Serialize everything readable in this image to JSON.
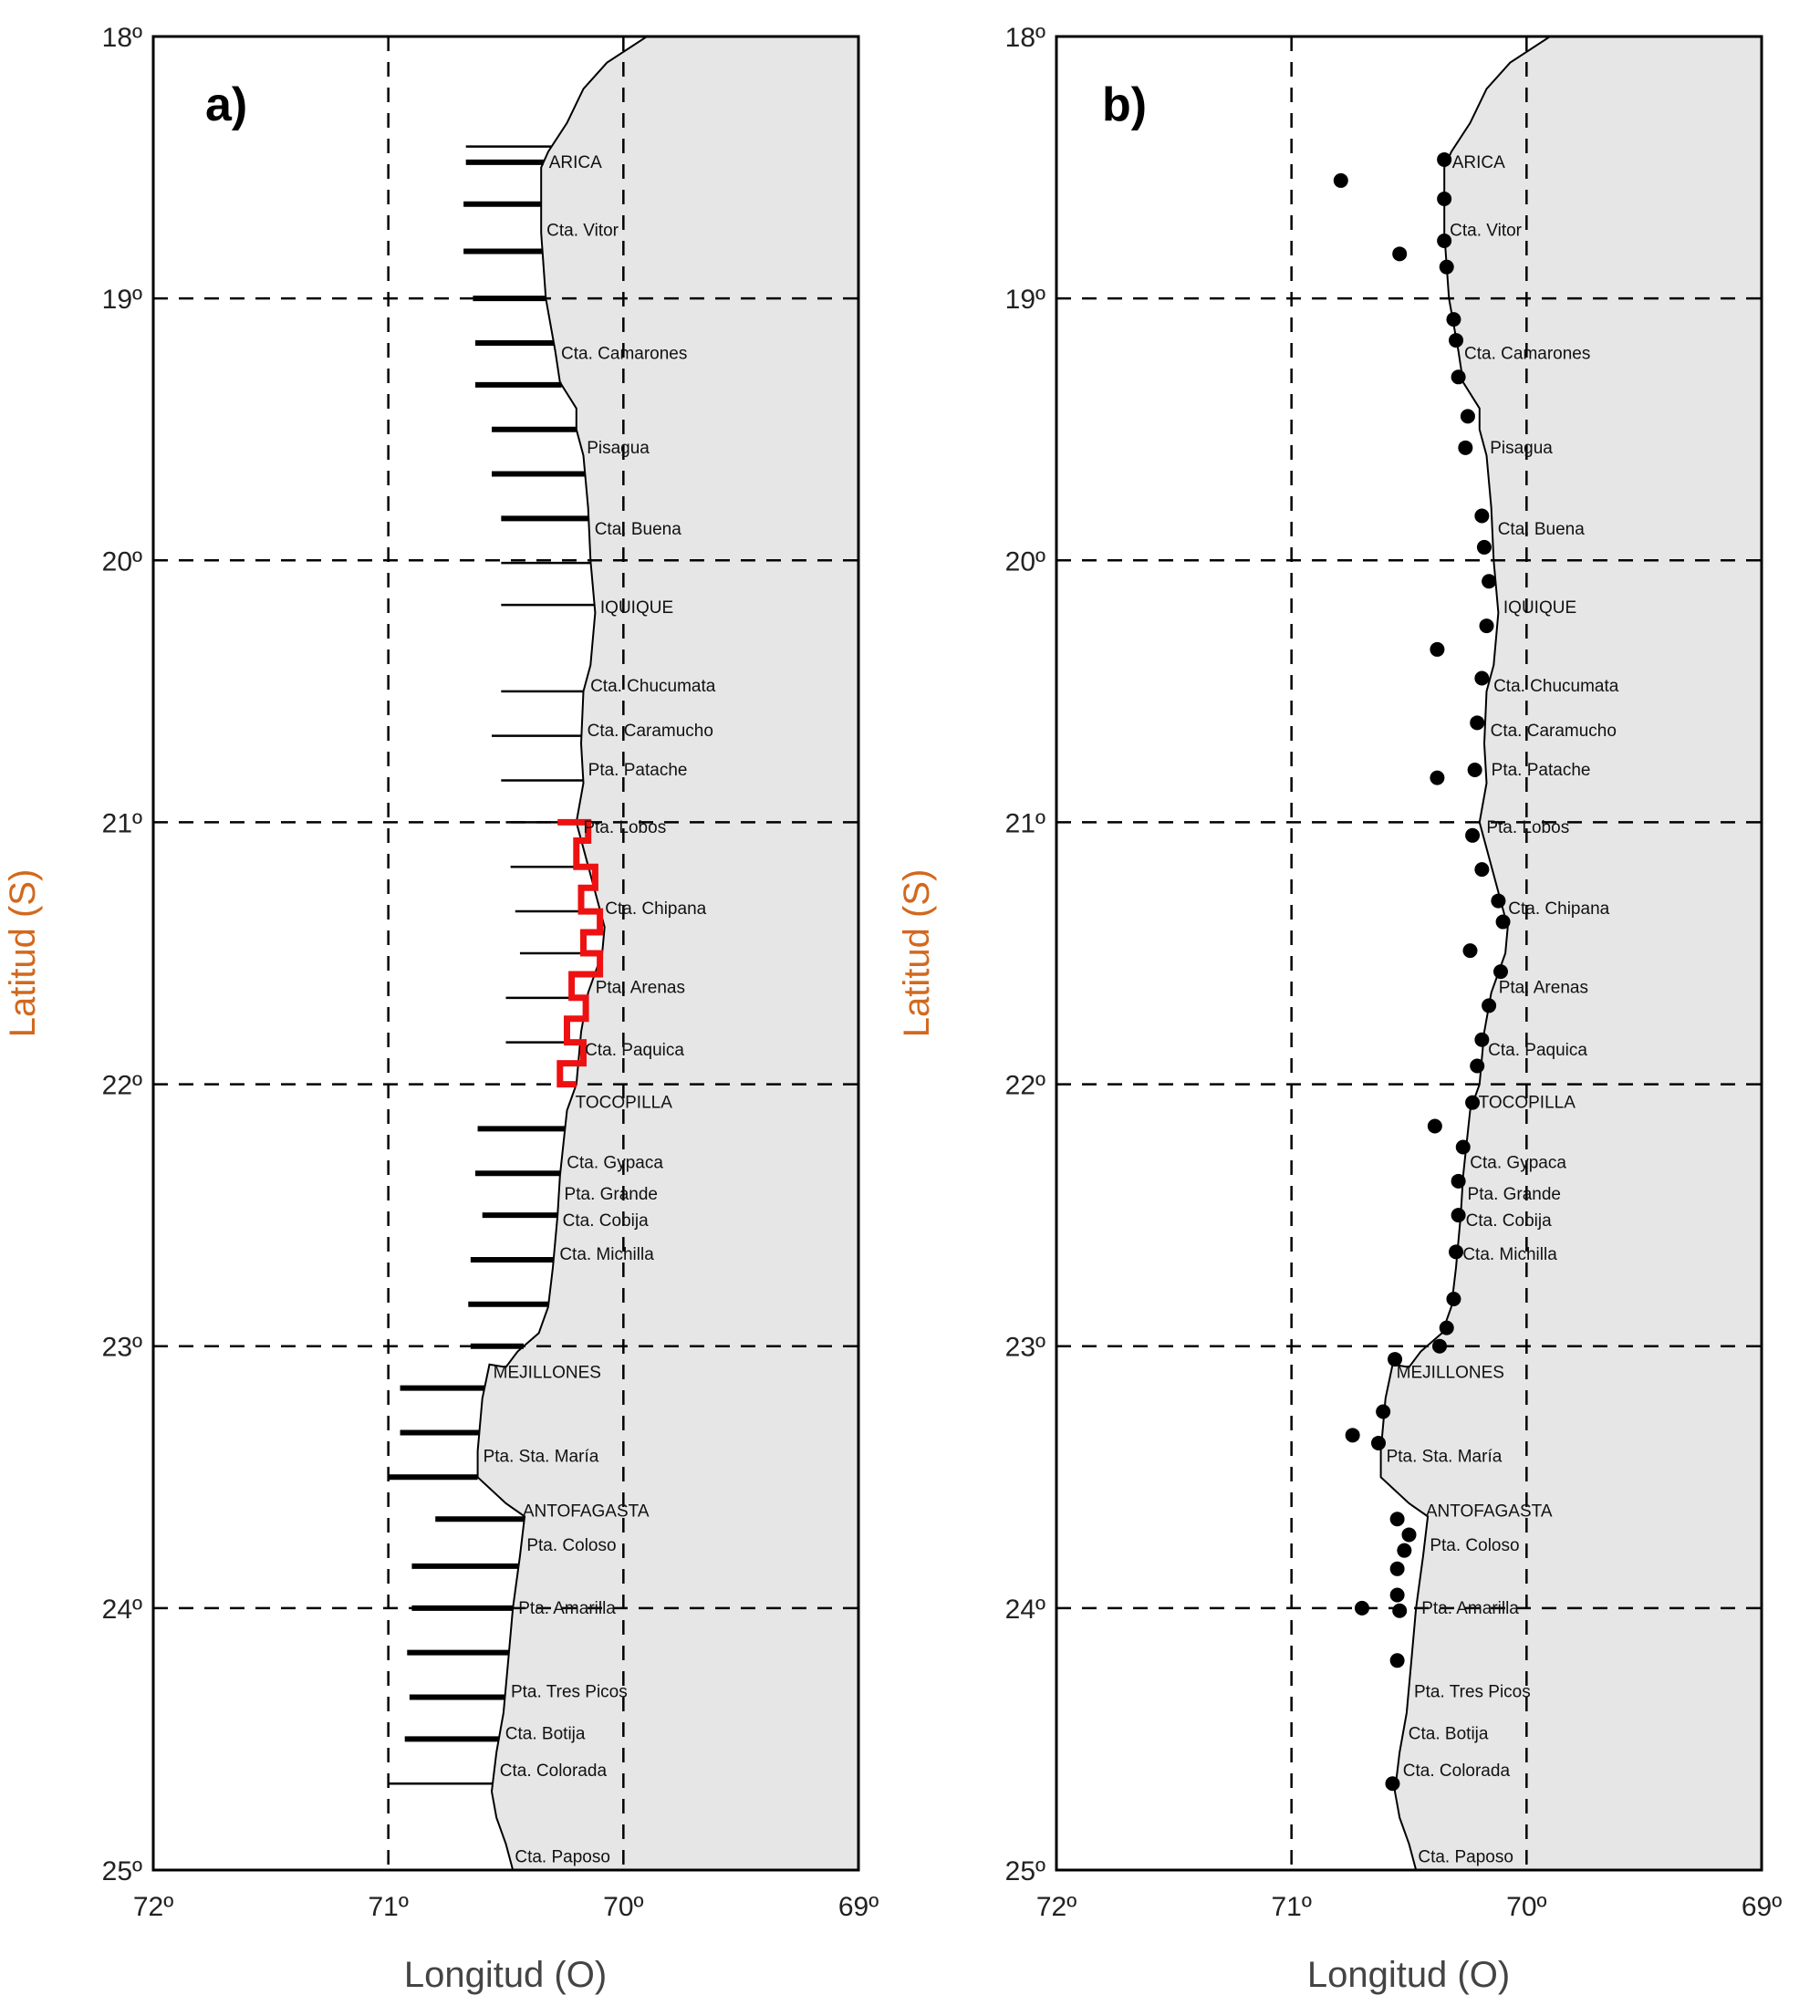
{
  "panels": [
    {
      "id": "a",
      "letter": "a)",
      "mode": "transects"
    },
    {
      "id": "b",
      "letter": "b)",
      "mode": "stations"
    }
  ],
  "axes": {
    "x_title": "Longitud (O)",
    "y_title": "Latitud (S)",
    "x_ticks": [
      {
        "value": 72,
        "label": "72º"
      },
      {
        "value": 71,
        "label": "71º"
      },
      {
        "value": 70,
        "label": "70º"
      },
      {
        "value": 69,
        "label": "69º"
      }
    ],
    "y_ticks": [
      {
        "value": 18,
        "label": "18º"
      },
      {
        "value": 19,
        "label": "19º"
      },
      {
        "value": 20,
        "label": "20º"
      },
      {
        "value": 21,
        "label": "21º"
      },
      {
        "value": 22,
        "label": "22º"
      },
      {
        "value": 23,
        "label": "23º"
      },
      {
        "value": 24,
        "label": "24º"
      },
      {
        "value": 25,
        "label": "25º"
      }
    ],
    "x_range": [
      72,
      69
    ],
    "y_range": [
      18,
      25
    ],
    "gridlines": "dashed",
    "y_title_color": "#d2691e"
  },
  "colors": {
    "land": "#e6e6e6",
    "coast": "#000000",
    "transect": "#000000",
    "highlight": "#ee1111",
    "grid": "#000000"
  },
  "coastline": [
    [
      69.9,
      18.0
    ],
    [
      70.07,
      18.1
    ],
    [
      70.17,
      18.2
    ],
    [
      70.24,
      18.33
    ],
    [
      70.32,
      18.44
    ],
    [
      70.35,
      18.5
    ],
    [
      70.35,
      18.75
    ],
    [
      70.33,
      19.0
    ],
    [
      70.29,
      19.2
    ],
    [
      70.27,
      19.32
    ],
    [
      70.2,
      19.42
    ],
    [
      70.2,
      19.5
    ],
    [
      70.17,
      19.6
    ],
    [
      70.15,
      19.8
    ],
    [
      70.14,
      20.0
    ],
    [
      70.12,
      20.2
    ],
    [
      70.14,
      20.4
    ],
    [
      70.17,
      20.5
    ],
    [
      70.18,
      20.7
    ],
    [
      70.17,
      20.85
    ],
    [
      70.2,
      21.0
    ],
    [
      70.14,
      21.2
    ],
    [
      70.08,
      21.4
    ],
    [
      70.09,
      21.5
    ],
    [
      70.15,
      21.65
    ],
    [
      70.18,
      21.8
    ],
    [
      70.2,
      22.0
    ],
    [
      70.24,
      22.1
    ],
    [
      70.27,
      22.35
    ],
    [
      70.28,
      22.5
    ],
    [
      70.3,
      22.7
    ],
    [
      70.32,
      22.85
    ],
    [
      70.36,
      22.95
    ],
    [
      70.45,
      23.02
    ],
    [
      70.5,
      23.08
    ],
    [
      70.57,
      23.07
    ],
    [
      70.6,
      23.2
    ],
    [
      70.62,
      23.4
    ],
    [
      70.62,
      23.5
    ],
    [
      70.5,
      23.6
    ],
    [
      70.42,
      23.65
    ],
    [
      70.44,
      23.8
    ],
    [
      70.47,
      24.0
    ],
    [
      70.49,
      24.2
    ],
    [
      70.51,
      24.4
    ],
    [
      70.54,
      24.55
    ],
    [
      70.56,
      24.7
    ],
    [
      70.54,
      24.8
    ],
    [
      70.5,
      24.9
    ],
    [
      70.47,
      25.0
    ]
  ],
  "places": [
    {
      "name": "ARICA",
      "lat": 18.48
    },
    {
      "name": "Cta. Vitor",
      "lat": 18.74
    },
    {
      "name": "Cta. Camarones",
      "lat": 19.21
    },
    {
      "name": "Pisagua",
      "lat": 19.57
    },
    {
      "name": "Cta. Buena",
      "lat": 19.88
    },
    {
      "name": "IQUIQUE",
      "lat": 20.18
    },
    {
      "name": "Cta. Chucumata",
      "lat": 20.48
    },
    {
      "name": "Cta. Caramucho",
      "lat": 20.65
    },
    {
      "name": "Pta. Patache",
      "lat": 20.8
    },
    {
      "name": "Pta. Lobos",
      "lat": 21.02
    },
    {
      "name": "Cta. Chipana",
      "lat": 21.33
    },
    {
      "name": "Pta. Arenas",
      "lat": 21.63
    },
    {
      "name": "Cta. Paquica",
      "lat": 21.87
    },
    {
      "name": "TOCOPILLA",
      "lat": 22.07
    },
    {
      "name": "Cta. Gypaca",
      "lat": 22.3
    },
    {
      "name": "Pta. Grande",
      "lat": 22.42
    },
    {
      "name": "Cta. Cobija",
      "lat": 22.52
    },
    {
      "name": "Cta. Michilla",
      "lat": 22.65
    },
    {
      "name": "MEJILLONES",
      "lat": 23.1
    },
    {
      "name": "Pta. Sta. María",
      "lat": 23.42
    },
    {
      "name": "ANTOFAGASTA",
      "lat": 23.63
    },
    {
      "name": "Pta. Coloso",
      "lat": 23.76
    },
    {
      "name": "Pta. Amarilla",
      "lat": 24.0
    },
    {
      "name": "Pta. Tres Picos",
      "lat": 24.32
    },
    {
      "name": "Cta. Botija",
      "lat": 24.48
    },
    {
      "name": "Cta. Colorada",
      "lat": 24.62
    },
    {
      "name": "Cta. Paposo",
      "lat": 24.95
    }
  ],
  "transects": [
    {
      "lat": 18.42,
      "west": 70.67,
      "bold": false
    },
    {
      "lat": 18.48,
      "west": 70.67,
      "bold": true
    },
    {
      "lat": 18.64,
      "west": 70.68,
      "bold": true
    },
    {
      "lat": 18.82,
      "west": 70.68,
      "bold": true
    },
    {
      "lat": 19.0,
      "west": 70.64,
      "bold": true
    },
    {
      "lat": 19.17,
      "west": 70.63,
      "bold": true
    },
    {
      "lat": 19.33,
      "west": 70.63,
      "bold": true
    },
    {
      "lat": 19.5,
      "west": 70.56,
      "bold": true
    },
    {
      "lat": 19.67,
      "west": 70.56,
      "bold": true
    },
    {
      "lat": 19.84,
      "west": 70.52,
      "bold": true
    },
    {
      "lat": 20.01,
      "west": 70.52,
      "bold": false
    },
    {
      "lat": 20.17,
      "west": 70.52,
      "bold": false
    },
    {
      "lat": 20.5,
      "west": 70.52,
      "bold": false
    },
    {
      "lat": 20.67,
      "west": 70.56,
      "bold": false
    },
    {
      "lat": 20.84,
      "west": 70.52,
      "bold": false
    },
    {
      "lat": 21.0,
      "west": 70.5,
      "bold": false
    },
    {
      "lat": 21.17,
      "west": 70.48,
      "bold": false
    },
    {
      "lat": 21.34,
      "west": 70.46,
      "bold": false
    },
    {
      "lat": 21.5,
      "west": 70.44,
      "bold": false
    },
    {
      "lat": 21.67,
      "west": 70.5,
      "bold": false
    },
    {
      "lat": 21.84,
      "west": 70.5,
      "bold": false
    },
    {
      "lat": 22.17,
      "west": 70.62,
      "bold": true
    },
    {
      "lat": 22.34,
      "west": 70.63,
      "bold": true
    },
    {
      "lat": 22.5,
      "west": 70.6,
      "bold": true
    },
    {
      "lat": 22.67,
      "west": 70.65,
      "bold": true
    },
    {
      "lat": 22.84,
      "west": 70.66,
      "bold": true
    },
    {
      "lat": 23.0,
      "west": 70.65,
      "bold": true
    },
    {
      "lat": 23.16,
      "west": 70.95,
      "bold": true
    },
    {
      "lat": 23.33,
      "west": 70.95,
      "bold": true
    },
    {
      "lat": 23.5,
      "west": 71.0,
      "bold": true
    },
    {
      "lat": 23.66,
      "west": 70.8,
      "bold": true
    },
    {
      "lat": 23.84,
      "west": 70.9,
      "bold": true
    },
    {
      "lat": 24.0,
      "west": 70.9,
      "bold": true
    },
    {
      "lat": 24.17,
      "west": 70.92,
      "bold": true
    },
    {
      "lat": 24.34,
      "west": 70.91,
      "bold": true
    },
    {
      "lat": 24.5,
      "west": 70.93,
      "bold": true
    },
    {
      "lat": 24.67,
      "west": 71.0,
      "bold": false
    }
  ],
  "highlight_path": [
    [
      70.28,
      21.0
    ],
    [
      70.15,
      21.0
    ],
    [
      70.15,
      21.07
    ],
    [
      70.2,
      21.07
    ],
    [
      70.2,
      21.17
    ],
    [
      70.12,
      21.17
    ],
    [
      70.12,
      21.25
    ],
    [
      70.18,
      21.25
    ],
    [
      70.18,
      21.34
    ],
    [
      70.1,
      21.34
    ],
    [
      70.1,
      21.42
    ],
    [
      70.17,
      21.42
    ],
    [
      70.17,
      21.5
    ],
    [
      70.1,
      21.5
    ],
    [
      70.1,
      21.58
    ],
    [
      70.22,
      21.58
    ],
    [
      70.22,
      21.67
    ],
    [
      70.16,
      21.67
    ],
    [
      70.16,
      21.75
    ],
    [
      70.24,
      21.75
    ],
    [
      70.24,
      21.84
    ],
    [
      70.17,
      21.84
    ],
    [
      70.17,
      21.92
    ],
    [
      70.27,
      21.92
    ],
    [
      70.27,
      22.0
    ],
    [
      70.2,
      22.0
    ]
  ],
  "stations": [
    {
      "lon": 70.35,
      "lat": 18.47
    },
    {
      "lon": 70.79,
      "lat": 18.55
    },
    {
      "lon": 70.35,
      "lat": 18.62
    },
    {
      "lon": 70.35,
      "lat": 18.78
    },
    {
      "lon": 70.54,
      "lat": 18.83
    },
    {
      "lon": 70.34,
      "lat": 18.88
    },
    {
      "lon": 70.31,
      "lat": 19.08
    },
    {
      "lon": 70.3,
      "lat": 19.16
    },
    {
      "lon": 70.29,
      "lat": 19.3
    },
    {
      "lon": 70.25,
      "lat": 19.45
    },
    {
      "lon": 70.26,
      "lat": 19.57
    },
    {
      "lon": 70.19,
      "lat": 19.83
    },
    {
      "lon": 70.18,
      "lat": 19.95
    },
    {
      "lon": 70.16,
      "lat": 20.08
    },
    {
      "lon": 70.17,
      "lat": 20.25
    },
    {
      "lon": 70.38,
      "lat": 20.34
    },
    {
      "lon": 70.19,
      "lat": 20.45
    },
    {
      "lon": 70.21,
      "lat": 20.62
    },
    {
      "lon": 70.38,
      "lat": 20.83
    },
    {
      "lon": 70.22,
      "lat": 20.8
    },
    {
      "lon": 70.23,
      "lat": 21.05
    },
    {
      "lon": 70.19,
      "lat": 21.18
    },
    {
      "lon": 70.12,
      "lat": 21.3
    },
    {
      "lon": 70.1,
      "lat": 21.38
    },
    {
      "lon": 70.24,
      "lat": 21.49
    },
    {
      "lon": 70.11,
      "lat": 21.57
    },
    {
      "lon": 70.16,
      "lat": 21.7
    },
    {
      "lon": 70.19,
      "lat": 21.83
    },
    {
      "lon": 70.21,
      "lat": 21.93
    },
    {
      "lon": 70.23,
      "lat": 22.07
    },
    {
      "lon": 70.39,
      "lat": 22.16
    },
    {
      "lon": 70.27,
      "lat": 22.24
    },
    {
      "lon": 70.29,
      "lat": 22.37
    },
    {
      "lon": 70.29,
      "lat": 22.5
    },
    {
      "lon": 70.3,
      "lat": 22.64
    },
    {
      "lon": 70.31,
      "lat": 22.82
    },
    {
      "lon": 70.34,
      "lat": 22.93
    },
    {
      "lon": 70.37,
      "lat": 23.0
    },
    {
      "lon": 70.56,
      "lat": 23.05
    },
    {
      "lon": 70.61,
      "lat": 23.25
    },
    {
      "lon": 70.74,
      "lat": 23.34
    },
    {
      "lon": 70.63,
      "lat": 23.37
    },
    {
      "lon": 70.55,
      "lat": 23.66
    },
    {
      "lon": 70.5,
      "lat": 23.72
    },
    {
      "lon": 70.52,
      "lat": 23.78
    },
    {
      "lon": 70.55,
      "lat": 23.85
    },
    {
      "lon": 70.55,
      "lat": 23.95
    },
    {
      "lon": 70.7,
      "lat": 24.0
    },
    {
      "lon": 70.54,
      "lat": 24.01
    },
    {
      "lon": 70.55,
      "lat": 24.2
    },
    {
      "lon": 70.57,
      "lat": 24.67
    }
  ]
}
